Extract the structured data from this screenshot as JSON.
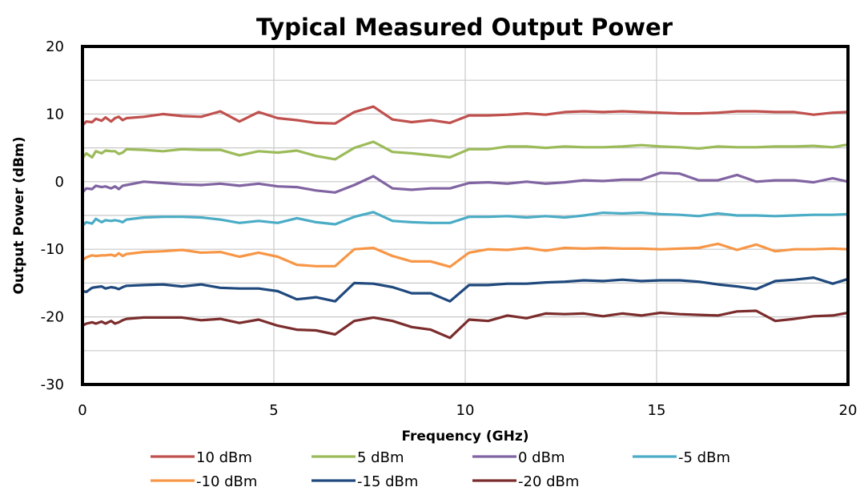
{
  "chart_data": {
    "type": "line",
    "title": "Typical Measured Output Power",
    "xlabel": "Frequency (GHz)",
    "ylabel": "Output Power  (dBm)",
    "xlim": [
      0,
      20
    ],
    "ylim": [
      -30,
      20
    ],
    "xticks": [
      0,
      5,
      10,
      15,
      20
    ],
    "yticks": [
      -30,
      -20,
      -10,
      0,
      10,
      20
    ],
    "grid": true,
    "legend_position": "bottom",
    "x": [
      0,
      0.1,
      0.25,
      0.35,
      0.5,
      0.6,
      0.75,
      0.85,
      0.95,
      1.05,
      1.15,
      1.6,
      2.1,
      2.6,
      3.1,
      3.6,
      4.1,
      4.6,
      5.1,
      5.6,
      6.1,
      6.6,
      7.1,
      7.6,
      8.1,
      8.6,
      9.1,
      9.6,
      10.1,
      10.6,
      11.1,
      11.6,
      12.1,
      12.6,
      13.1,
      13.6,
      14.1,
      14.6,
      15.1,
      15.6,
      16.1,
      16.6,
      17.1,
      17.6,
      18.1,
      18.6,
      19.1,
      19.6,
      20
    ],
    "series": [
      {
        "name": "10 dBm",
        "color": "#c0504d",
        "values": [
          8.3,
          8.9,
          8.8,
          9.3,
          9.0,
          9.5,
          8.9,
          9.4,
          9.6,
          9.1,
          9.4,
          9.6,
          10.0,
          9.7,
          9.6,
          10.4,
          8.9,
          10.3,
          9.4,
          9.1,
          8.7,
          8.6,
          10.3,
          11.1,
          9.2,
          8.8,
          9.1,
          8.7,
          9.8,
          9.8,
          9.9,
          10.1,
          9.9,
          10.3,
          10.4,
          10.3,
          10.4,
          10.3,
          10.2,
          10.1,
          10.1,
          10.2,
          10.4,
          10.4,
          10.3,
          10.3,
          9.9,
          10.2,
          10.3
        ]
      },
      {
        "name": "5 dBm",
        "color": "#9bbb59",
        "values": [
          3.5,
          4.2,
          3.6,
          4.5,
          4.2,
          4.6,
          4.5,
          4.5,
          4.1,
          4.3,
          4.8,
          4.7,
          4.5,
          4.8,
          4.7,
          4.7,
          3.9,
          4.5,
          4.3,
          4.6,
          3.8,
          3.3,
          5.0,
          5.9,
          4.4,
          4.2,
          3.9,
          3.6,
          4.8,
          4.8,
          5.2,
          5.2,
          5.0,
          5.2,
          5.1,
          5.1,
          5.2,
          5.4,
          5.2,
          5.1,
          4.9,
          5.2,
          5.1,
          5.1,
          5.2,
          5.2,
          5.3,
          5.1,
          5.5
        ]
      },
      {
        "name": "0 dBm",
        "color": "#8064a2",
        "values": [
          -1.6,
          -1.0,
          -1.1,
          -0.6,
          -0.8,
          -0.7,
          -1.0,
          -0.7,
          -1.1,
          -0.6,
          -0.5,
          0.0,
          -0.2,
          -0.4,
          -0.5,
          -0.3,
          -0.6,
          -0.3,
          -0.7,
          -0.8,
          -1.3,
          -1.6,
          -0.5,
          0.8,
          -1.0,
          -1.2,
          -1.0,
          -1.0,
          -0.2,
          -0.1,
          -0.3,
          0.0,
          -0.3,
          -0.1,
          0.2,
          0.1,
          0.3,
          0.3,
          1.3,
          1.2,
          0.2,
          0.2,
          1.0,
          0.0,
          0.2,
          0.2,
          -0.1,
          0.5,
          0.0
        ]
      },
      {
        "name": "-5 dBm",
        "color": "#4bacc6",
        "values": [
          -6.5,
          -6.0,
          -6.2,
          -5.5,
          -6.0,
          -5.7,
          -5.8,
          -5.7,
          -5.8,
          -6.0,
          -5.6,
          -5.3,
          -5.2,
          -5.2,
          -5.3,
          -5.6,
          -6.1,
          -5.8,
          -6.1,
          -5.4,
          -6.0,
          -6.3,
          -5.2,
          -4.5,
          -5.8,
          -6.0,
          -6.1,
          -6.1,
          -5.2,
          -5.2,
          -5.1,
          -5.3,
          -5.1,
          -5.3,
          -5.0,
          -4.6,
          -4.7,
          -4.6,
          -4.8,
          -4.9,
          -5.1,
          -4.7,
          -5.0,
          -5.0,
          -5.1,
          -5.0,
          -4.9,
          -4.9,
          -4.8
        ]
      },
      {
        "name": "-10 dBm",
        "color": "#f79646",
        "values": [
          -11.6,
          -11.2,
          -10.9,
          -11.0,
          -10.9,
          -10.9,
          -10.8,
          -11.0,
          -10.6,
          -11.0,
          -10.7,
          -10.4,
          -10.3,
          -10.1,
          -10.5,
          -10.4,
          -11.1,
          -10.5,
          -11.1,
          -12.3,
          -12.5,
          -12.5,
          -10.0,
          -9.8,
          -11.0,
          -11.8,
          -11.8,
          -12.6,
          -10.5,
          -10.0,
          -10.1,
          -9.8,
          -10.2,
          -9.8,
          -9.9,
          -9.8,
          -9.9,
          -9.9,
          -10.0,
          -9.9,
          -9.8,
          -9.2,
          -10.1,
          -9.3,
          -10.3,
          -10.0,
          -10.0,
          -9.9,
          -10.0
        ]
      },
      {
        "name": "-15 dBm",
        "color": "#1f497d",
        "values": [
          -16.2,
          -16.3,
          -15.7,
          -15.6,
          -15.5,
          -15.8,
          -15.6,
          -15.7,
          -15.9,
          -15.6,
          -15.4,
          -15.3,
          -15.2,
          -15.5,
          -15.2,
          -15.7,
          -15.8,
          -15.8,
          -16.2,
          -17.4,
          -17.1,
          -17.7,
          -15.0,
          -15.1,
          -15.6,
          -16.5,
          -16.5,
          -17.7,
          -15.3,
          -15.3,
          -15.1,
          -15.1,
          -14.9,
          -14.8,
          -14.6,
          -14.7,
          -14.5,
          -14.7,
          -14.6,
          -14.6,
          -14.8,
          -15.2,
          -15.5,
          -15.9,
          -14.7,
          -14.5,
          -14.2,
          -15.1,
          -14.4
        ]
      },
      {
        "name": "-20 dBm",
        "color": "#7b2c2c",
        "values": [
          -21.3,
          -21.0,
          -20.8,
          -21.0,
          -20.7,
          -21.0,
          -20.6,
          -21.0,
          -20.8,
          -20.5,
          -20.3,
          -20.1,
          -20.1,
          -20.1,
          -20.5,
          -20.3,
          -20.9,
          -20.4,
          -21.3,
          -21.9,
          -22.0,
          -22.6,
          -20.6,
          -20.1,
          -20.6,
          -21.5,
          -21.9,
          -23.1,
          -20.4,
          -20.6,
          -19.8,
          -20.2,
          -19.5,
          -19.6,
          -19.5,
          -19.9,
          -19.5,
          -19.8,
          -19.4,
          -19.6,
          -19.7,
          -19.8,
          -19.2,
          -19.1,
          -20.6,
          -20.3,
          -19.9,
          -19.8,
          -19.4
        ]
      }
    ]
  }
}
